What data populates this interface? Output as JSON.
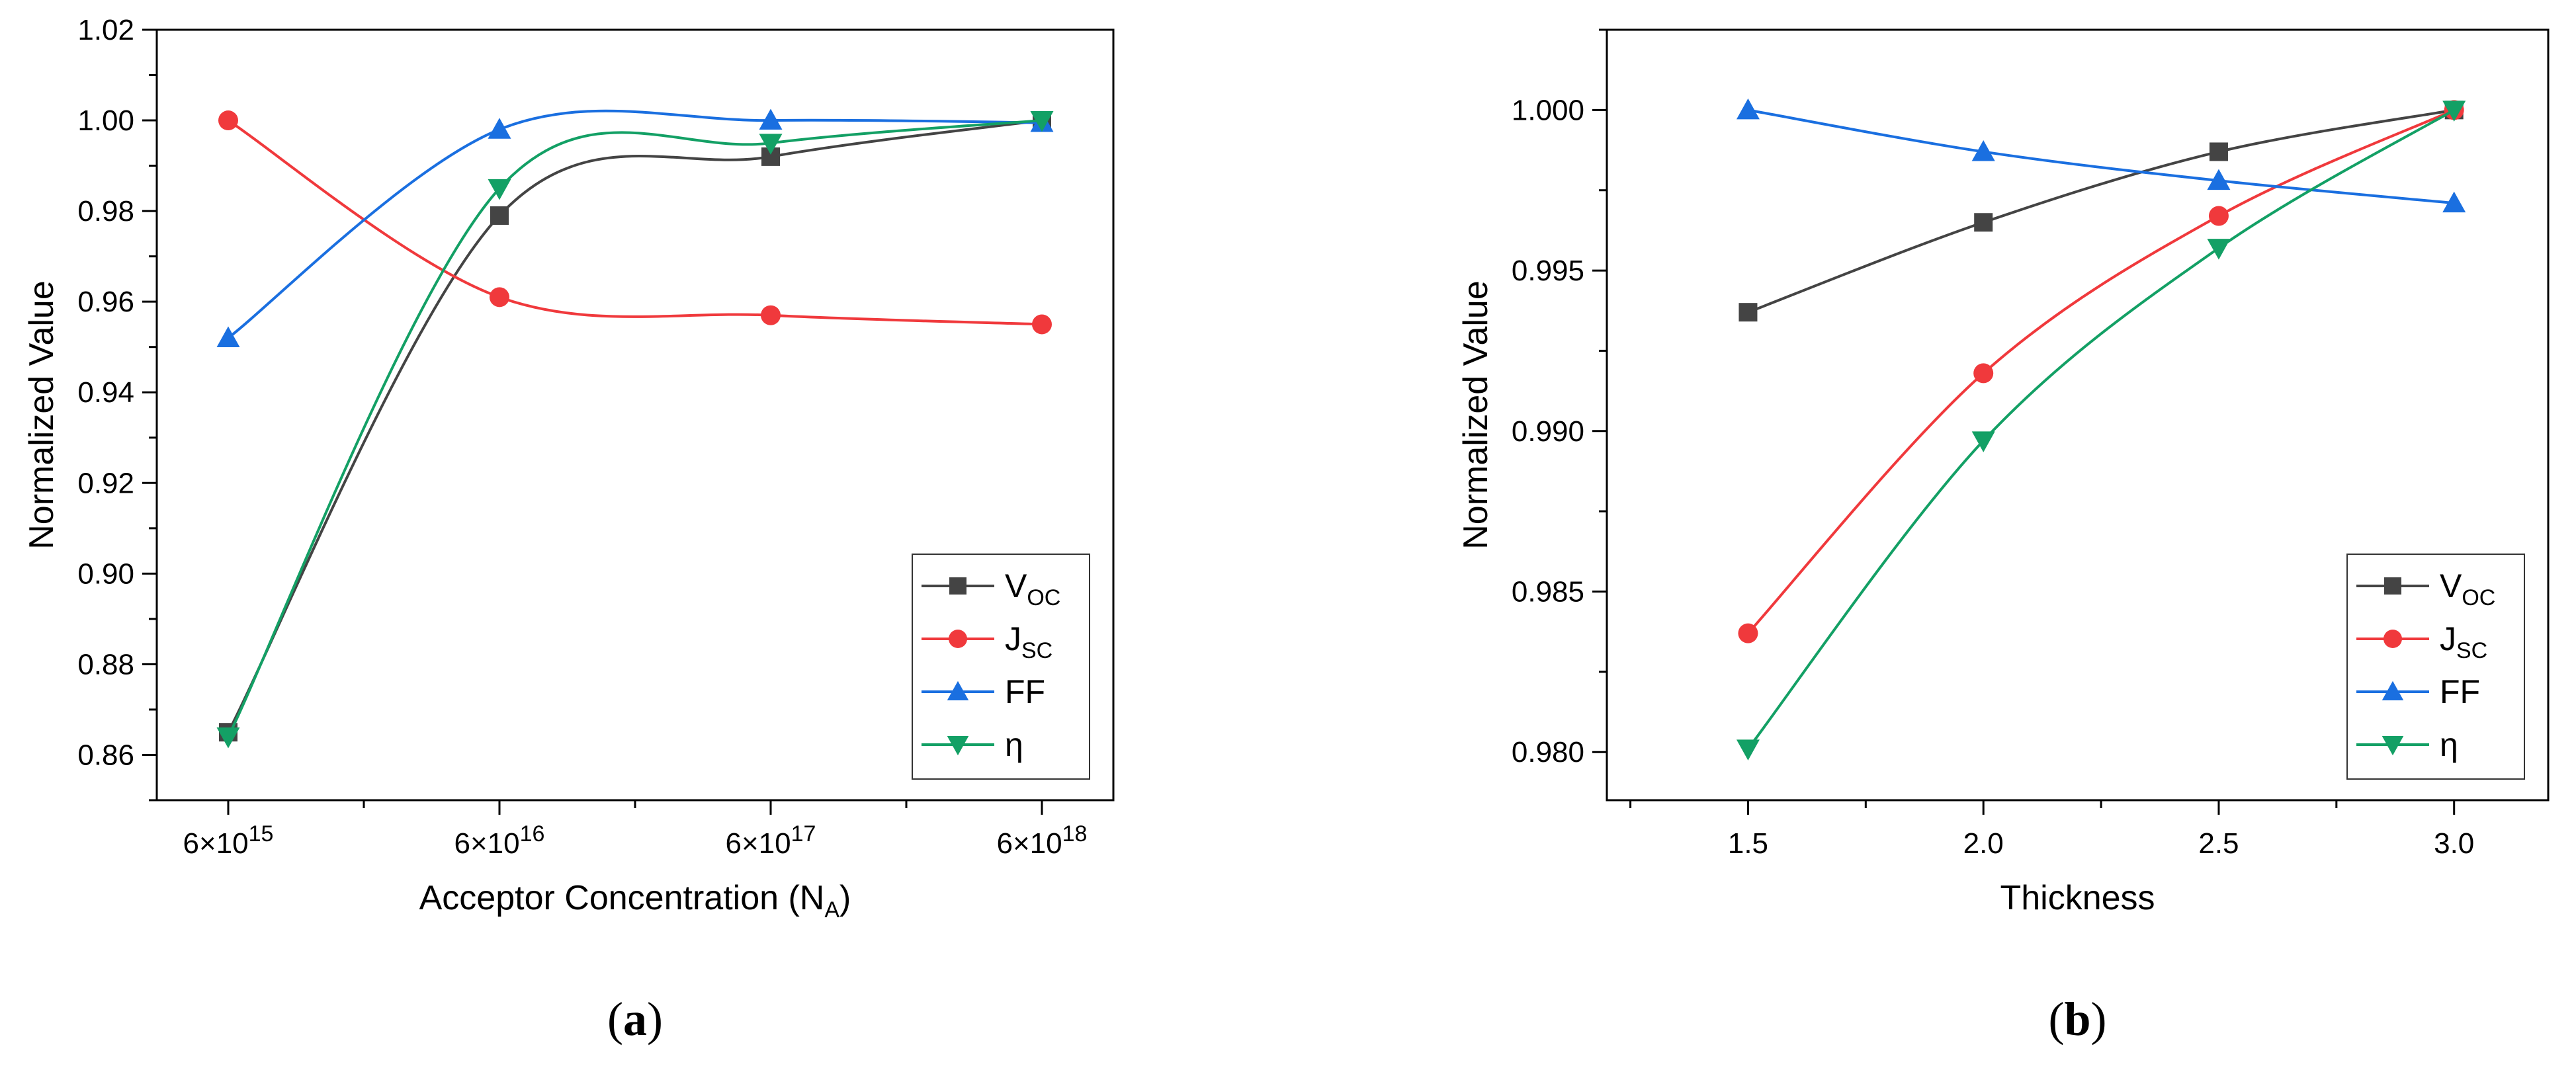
{
  "chart_data": [
    {
      "panel_label": "a",
      "type": "line",
      "xlabel_main": "Acceptor Concentration (N",
      "xlabel_sub": "A",
      "xlabel_end": ")",
      "ylabel": "Normalized Value",
      "x_ticks": [
        {
          "base": "6×10",
          "exp": "15"
        },
        {
          "base": "6×10",
          "exp": "16"
        },
        {
          "base": "6×10",
          "exp": "17"
        },
        {
          "base": "6×10",
          "exp": "18"
        }
      ],
      "y_ticks": [
        "0.86",
        "0.88",
        "0.90",
        "0.92",
        "0.94",
        "0.96",
        "0.98",
        "1.00",
        "1.02"
      ],
      "ylim": [
        0.85,
        1.02
      ],
      "legend_position": "bottom-right",
      "grid": false,
      "series": [
        {
          "name": "V",
          "sub": "OC",
          "color": "#444444",
          "marker": "square",
          "values": [
            0.865,
            0.979,
            0.992,
            1.0
          ]
        },
        {
          "name": "J",
          "sub": "SC",
          "color": "#f0393c",
          "marker": "circle",
          "values": [
            1.0,
            0.961,
            0.957,
            0.955
          ]
        },
        {
          "name": "FF",
          "sub": "",
          "color": "#1a6fe0",
          "marker": "triangle-up",
          "values": [
            0.952,
            0.998,
            1.0,
            0.9995
          ]
        },
        {
          "name": "η",
          "sub": "",
          "color": "#13a065",
          "marker": "triangle-down",
          "values": [
            0.864,
            0.985,
            0.995,
            1.0
          ]
        }
      ]
    },
    {
      "panel_label": "b",
      "type": "line",
      "xlabel": "Thickness",
      "ylabel": "Normalized Value",
      "x": [
        1.5,
        2.0,
        2.5,
        3.0
      ],
      "x_ticks": [
        "1.5",
        "2.0",
        "2.5",
        "3.0"
      ],
      "xlim": [
        1.2,
        3.2
      ],
      "y_ticks": [
        "0.980",
        "0.985",
        "0.990",
        "0.995",
        "1.000"
      ],
      "ylim": [
        0.9785,
        1.0025
      ],
      "legend_position": "bottom-right",
      "grid": false,
      "series": [
        {
          "name": "V",
          "sub": "OC",
          "color": "#444444",
          "marker": "square",
          "values": [
            0.9937,
            0.9965,
            0.9987,
            1.0
          ]
        },
        {
          "name": "J",
          "sub": "SC",
          "color": "#f0393c",
          "marker": "circle",
          "values": [
            0.9837,
            0.9918,
            0.9967,
            1.0
          ]
        },
        {
          "name": "FF",
          "sub": "",
          "color": "#1a6fe0",
          "marker": "triangle-up",
          "values": [
            1.0,
            0.9987,
            0.9978,
            0.9971
          ]
        },
        {
          "name": "η",
          "sub": "",
          "color": "#13a065",
          "marker": "triangle-down",
          "values": [
            0.9801,
            0.9897,
            0.9957,
            1.0
          ]
        }
      ]
    }
  ]
}
